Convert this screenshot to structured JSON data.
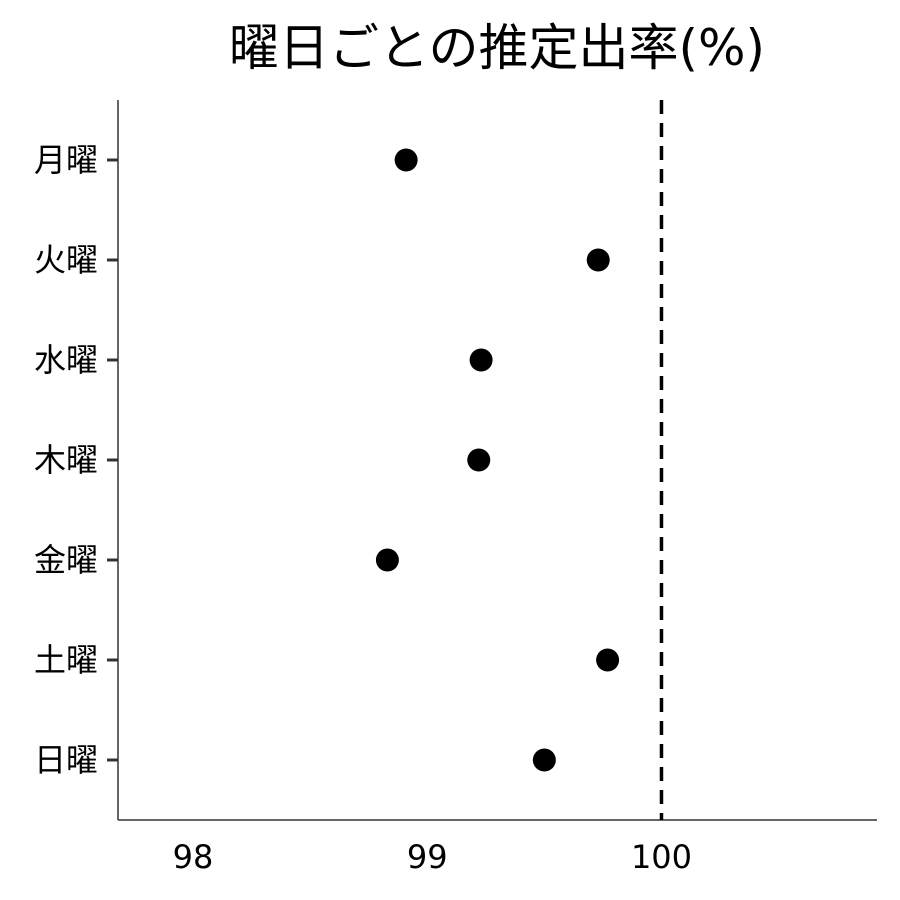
{
  "chart_data": {
    "type": "scatter",
    "title": "曜日ごとの推定出率(%)",
    "xlabel": "",
    "ylabel": "",
    "categories": [
      "月曜",
      "火曜",
      "水曜",
      "木曜",
      "金曜",
      "土曜",
      "日曜"
    ],
    "values": [
      98.91,
      99.73,
      99.23,
      99.22,
      98.83,
      99.77,
      99.5
    ],
    "xlim": [
      97.68,
      100.92
    ],
    "xticks": [
      98,
      99,
      100
    ],
    "xtick_labels": [
      "98",
      "99",
      "100"
    ],
    "reference_line": {
      "x": 100,
      "style": "dashed",
      "color": "#000000"
    },
    "point_color": "#000000",
    "grid": false,
    "legend": "none"
  }
}
